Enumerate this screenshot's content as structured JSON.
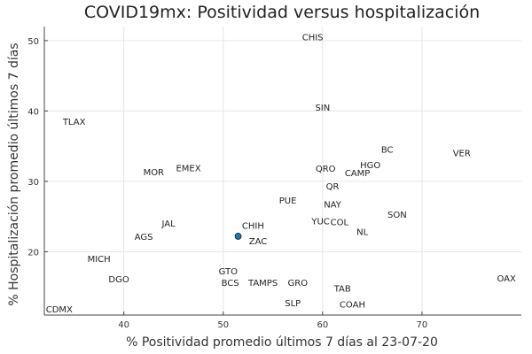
{
  "chart_data": {
    "type": "scatter",
    "title": "COVID19mx: Positividad versus hospitalización",
    "xlabel": "% Positividad promedio últimos 7 días al 23-07-20",
    "ylabel": "% Hospitalización promedio últimos 7 días",
    "xlim": [
      32,
      80
    ],
    "ylim": [
      11,
      52
    ],
    "xticks": [
      40,
      50,
      60,
      70
    ],
    "yticks": [
      20,
      30,
      40,
      50
    ],
    "grid": true,
    "legend": "none",
    "marker_color": "#1f77b4",
    "points": [
      {
        "label": "CHIS",
        "x": 59,
        "y": 50.5,
        "marker": false
      },
      {
        "label": "SIN",
        "x": 60,
        "y": 40.5,
        "marker": false
      },
      {
        "label": "TLAX",
        "x": 35,
        "y": 38.5,
        "marker": false
      },
      {
        "label": "BC",
        "x": 66.5,
        "y": 34.5,
        "marker": false
      },
      {
        "label": "VER",
        "x": 74,
        "y": 34,
        "marker": false
      },
      {
        "label": "HGO",
        "x": 64.8,
        "y": 32.3,
        "marker": false
      },
      {
        "label": "QRO",
        "x": 60.3,
        "y": 31.8,
        "marker": false
      },
      {
        "label": "CAMP",
        "x": 63.5,
        "y": 31.2,
        "marker": false
      },
      {
        "label": "EMEX",
        "x": 46.5,
        "y": 31.9,
        "marker": false
      },
      {
        "label": "MOR",
        "x": 43,
        "y": 31.3,
        "marker": false
      },
      {
        "label": "QR",
        "x": 61,
        "y": 29.3,
        "marker": false
      },
      {
        "label": "PUE",
        "x": 56.5,
        "y": 27.3,
        "marker": false
      },
      {
        "label": "NAY",
        "x": 61,
        "y": 26.7,
        "marker": false
      },
      {
        "label": "SON",
        "x": 67.5,
        "y": 25.3,
        "marker": false
      },
      {
        "label": "YUC",
        "x": 59.8,
        "y": 24.3,
        "marker": false
      },
      {
        "label": "COL",
        "x": 61.7,
        "y": 24.2,
        "marker": false
      },
      {
        "label": "JAL",
        "x": 44.5,
        "y": 24,
        "marker": false
      },
      {
        "label": "CHIH",
        "x": 53,
        "y": 23.7,
        "marker": false
      },
      {
        "label": "NL",
        "x": 64,
        "y": 22.8,
        "marker": false
      },
      {
        "label": "AGS",
        "x": 42,
        "y": 22.1,
        "marker": false
      },
      {
        "label": "ZAC",
        "x": 51.5,
        "y": 22.2,
        "marker": true,
        "label_x": 53.5,
        "label_y": 21.5
      },
      {
        "label": "MICH",
        "x": 37.5,
        "y": 19,
        "marker": false
      },
      {
        "label": "GTO",
        "x": 50.5,
        "y": 17.2,
        "marker": false
      },
      {
        "label": "DGO",
        "x": 39.5,
        "y": 16.1,
        "marker": false
      },
      {
        "label": "BCS",
        "x": 50.7,
        "y": 15.6,
        "marker": false
      },
      {
        "label": "TAMPS",
        "x": 54,
        "y": 15.6,
        "marker": false
      },
      {
        "label": "GRO",
        "x": 57.5,
        "y": 15.6,
        "marker": false
      },
      {
        "label": "OAX",
        "x": 78.5,
        "y": 16.2,
        "marker": false
      },
      {
        "label": "TAB",
        "x": 62,
        "y": 14.8,
        "marker": false
      },
      {
        "label": "SLP",
        "x": 57,
        "y": 12.7,
        "marker": false
      },
      {
        "label": "COAH",
        "x": 63,
        "y": 12.5,
        "marker": false
      },
      {
        "label": "CDMX",
        "x": 33.5,
        "y": 11.8,
        "marker": false
      }
    ]
  }
}
